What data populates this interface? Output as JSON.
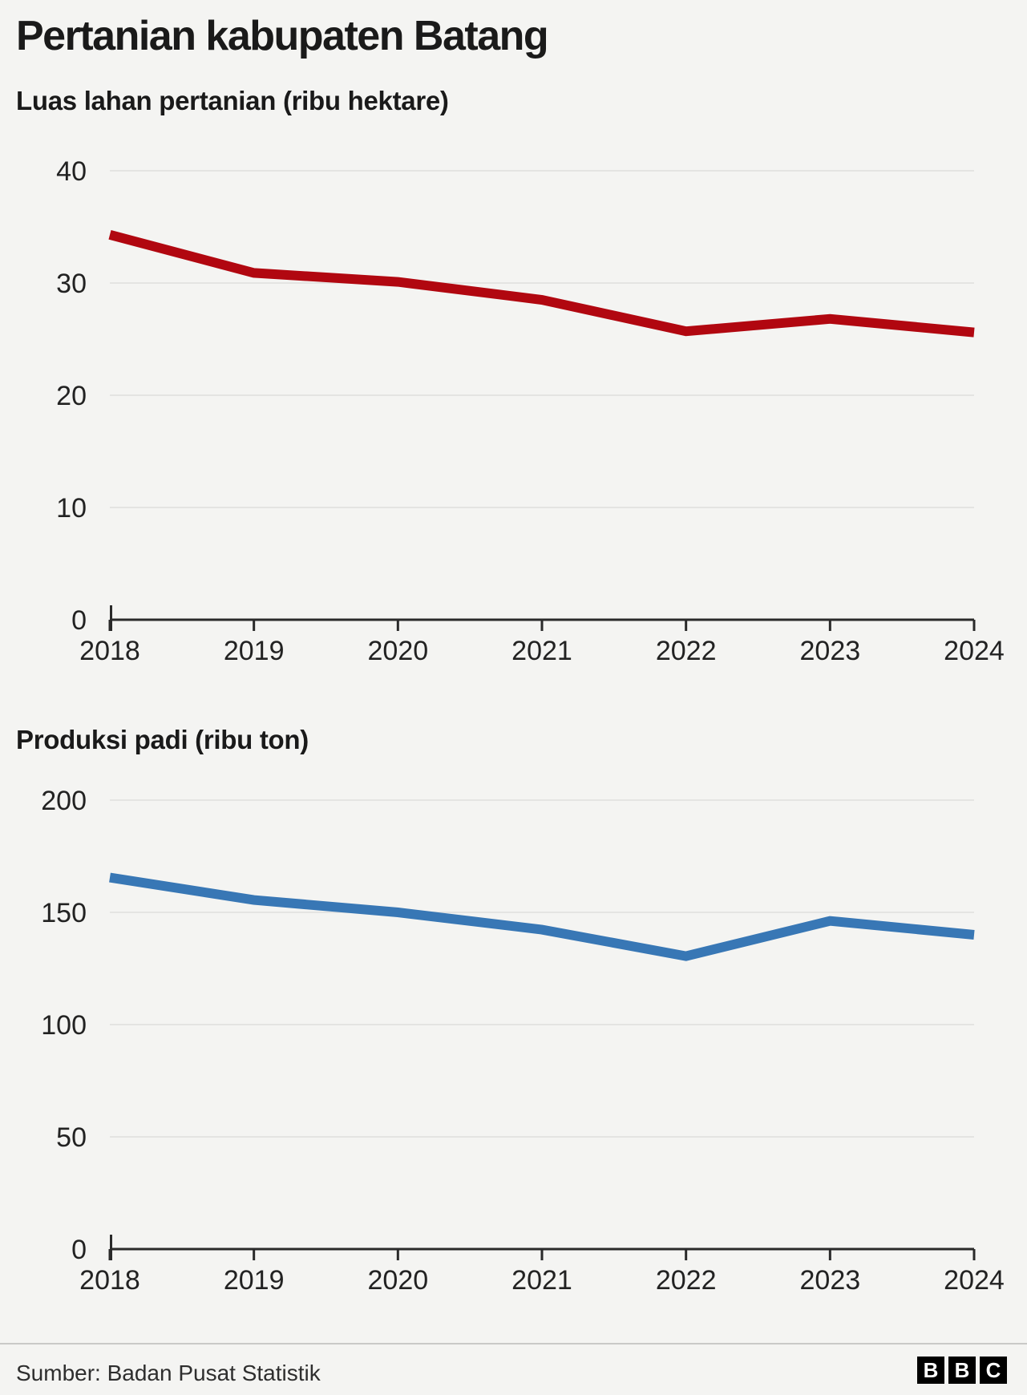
{
  "header": {
    "title": "Pertanian kabupaten Batang"
  },
  "chart_data": [
    {
      "id": "land-area",
      "type": "line",
      "title": "Luas lahan pertanian (ribu hektare)",
      "categories": [
        "2018",
        "2019",
        "2020",
        "2021",
        "2022",
        "2023",
        "2024"
      ],
      "values": [
        34.3,
        30.9,
        30.1,
        28.5,
        25.7,
        26.8,
        25.6
      ],
      "color": "#b10710",
      "xlabel": "",
      "ylabel": "",
      "ylim": [
        0,
        40
      ],
      "yticks": [
        0,
        10,
        20,
        30,
        40
      ],
      "grid": "horizontal",
      "legend": "none"
    },
    {
      "id": "rice-production",
      "type": "line",
      "title": "Produksi padi (ribu ton)",
      "categories": [
        "2018",
        "2019",
        "2020",
        "2021",
        "2022",
        "2023",
        "2024"
      ],
      "values": [
        165.5,
        155.5,
        150.0,
        142.3,
        130.5,
        146.2,
        140.0
      ],
      "color": "#3877b5",
      "xlabel": "",
      "ylabel": "",
      "ylim": [
        0,
        200
      ],
      "yticks": [
        0,
        50,
        100,
        150,
        200
      ],
      "grid": "horizontal",
      "legend": "none"
    }
  ],
  "footer": {
    "source": "Sumber: Badan Pusat Statistik",
    "logo_letters": [
      "B",
      "B",
      "C"
    ]
  }
}
